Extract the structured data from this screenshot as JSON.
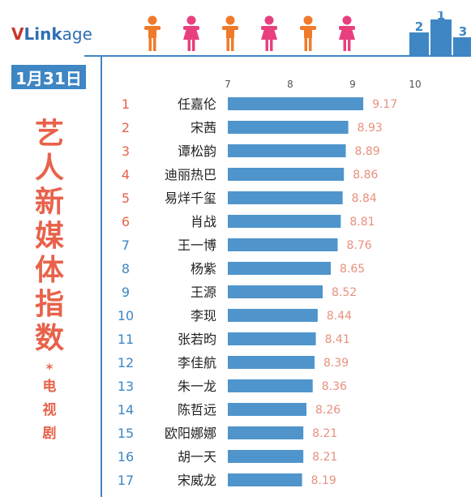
{
  "brand": {
    "v": "V",
    "link": "Link",
    "age": "age"
  },
  "date": "1月31日",
  "title_chars": [
    "艺",
    "人",
    "新",
    "媒",
    "体",
    "指",
    "数"
  ],
  "title_mark": "*",
  "subtitle_chars": [
    "电",
    "视",
    "剧"
  ],
  "colors": {
    "bar": "#4f95cc",
    "accent_red": "#e8624a",
    "accent_blue": "#3e86c4",
    "male_icon": "#f07a2a",
    "female_icon": "#e8407e"
  },
  "icons": [
    "male-person-icon",
    "female-person-icon",
    "male-person-icon",
    "female-person-icon",
    "male-person-icon",
    "female-person-icon",
    "podium-icon"
  ],
  "podium_labels": [
    "2",
    "1",
    "3"
  ],
  "chart_data": {
    "type": "bar",
    "orientation": "horizontal",
    "title": "",
    "xlim": [
      7,
      10
    ],
    "ticks": [
      7,
      8,
      9,
      10
    ],
    "grid": false,
    "categories": [
      "任嘉伦",
      "宋茜",
      "谭松韵",
      "迪丽热巴",
      "易烊千玺",
      "肖战",
      "王一博",
      "杨紫",
      "王源",
      "李现",
      "张若昀",
      "李佳航",
      "朱一龙",
      "陈哲远",
      "欧阳娜娜",
      "胡一天",
      "宋威龙"
    ],
    "ranks": [
      1,
      2,
      3,
      4,
      5,
      6,
      7,
      8,
      9,
      10,
      11,
      12,
      13,
      14,
      15,
      16,
      17
    ],
    "values": [
      9.17,
      8.93,
      8.89,
      8.86,
      8.84,
      8.81,
      8.76,
      8.65,
      8.52,
      8.44,
      8.41,
      8.39,
      8.36,
      8.26,
      8.21,
      8.21,
      8.19
    ]
  }
}
